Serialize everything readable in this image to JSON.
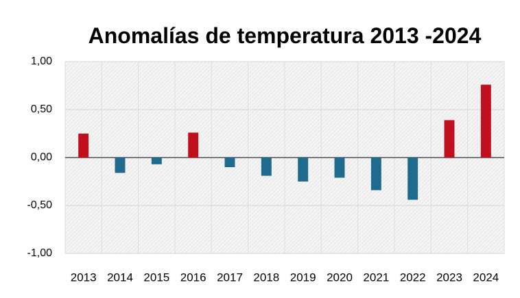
{
  "chart_data": {
    "type": "bar",
    "title": "Anomalías de temperatura 2013 -2024",
    "categories": [
      "2013",
      "2014",
      "2015",
      "2016",
      "2017",
      "2018",
      "2019",
      "2020",
      "2021",
      "2022",
      "2023",
      "2024"
    ],
    "values": [
      0.25,
      -0.16,
      -0.07,
      0.26,
      -0.1,
      -0.19,
      -0.25,
      -0.21,
      -0.34,
      -0.44,
      0.39,
      0.76
    ],
    "positive_color": "#c00f1e",
    "negative_color": "#1f6b8e",
    "ylim": [
      -1,
      1
    ],
    "yticks": [
      {
        "value": -1,
        "label": "-1,00"
      },
      {
        "value": -0.5,
        "label": "-0,50"
      },
      {
        "value": 0,
        "label": "0,00"
      },
      {
        "value": 0.5,
        "label": "0,50"
      },
      {
        "value": 1,
        "label": "1,00"
      }
    ],
    "grid": true
  }
}
